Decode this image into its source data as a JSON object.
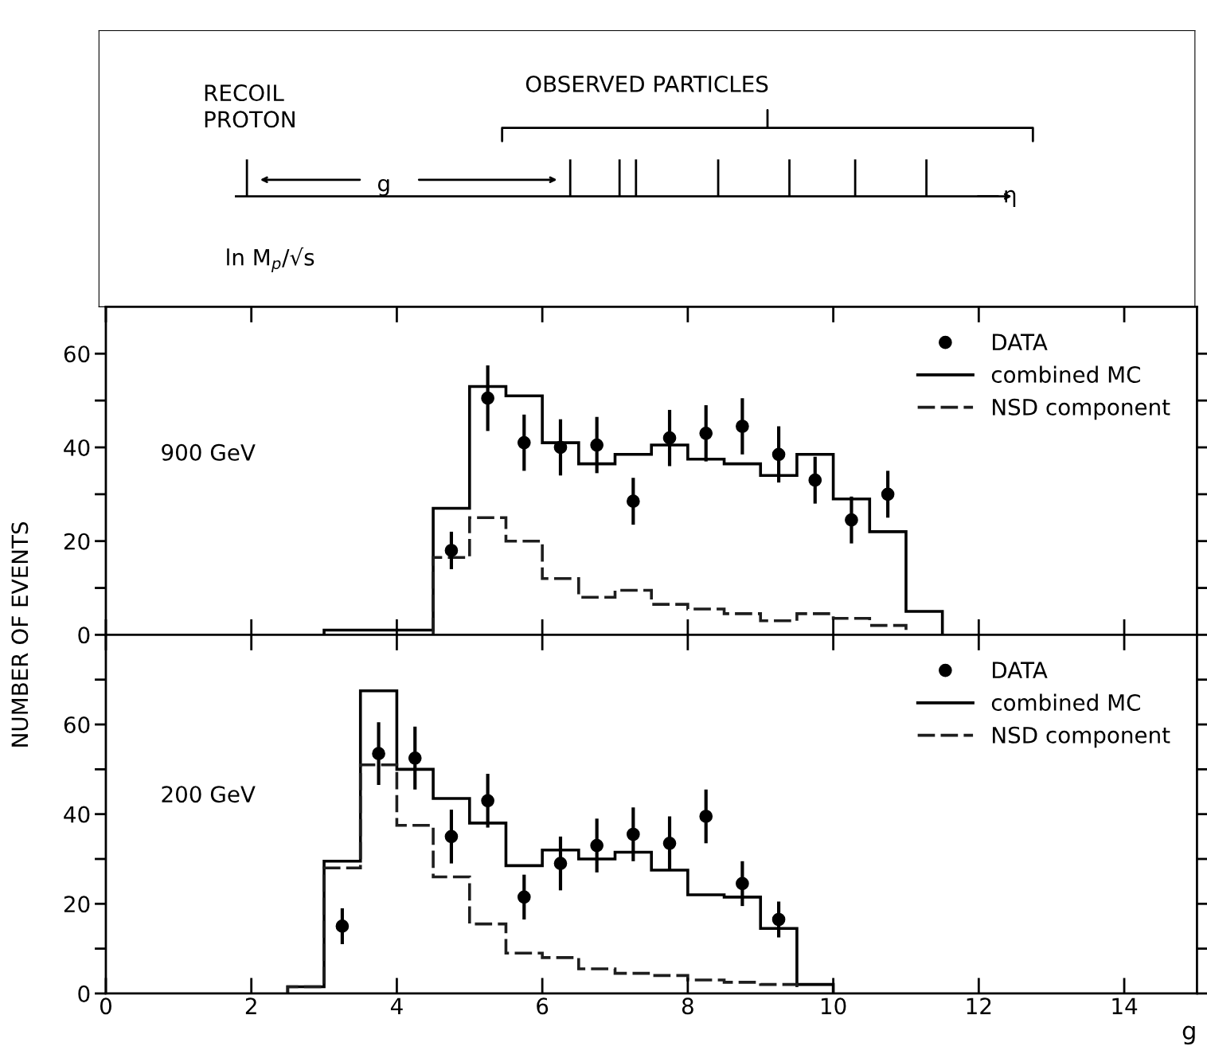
{
  "chart_data": [
    {
      "type": "other",
      "annotations": [
        "RECOIL\nPROTON",
        "OBSERVED PARTICLES",
        "g",
        "η",
        "ln M$_{p}$/√s"
      ]
    },
    {
      "type": "histogram",
      "xlim": [
        0,
        15
      ],
      "xticks": [
        0,
        2,
        4,
        6,
        8,
        10,
        12,
        14
      ],
      "ylim": [
        0,
        70
      ],
      "yticks": [
        0,
        {
          "value": 10,
          "label": null
        },
        20,
        {
          "value": 30,
          "label": null
        },
        40,
        {
          "value": 50,
          "label": null
        },
        60
      ],
      "tick_labels": "y",
      "legend": "top right",
      "grid": false,
      "annotations": [
        "900 GeV"
      ],
      "series": [
        {
          "name": "DATA",
          "type": "scatter",
          "marker": "circle",
          "color": "#000000",
          "x": [
            4.75,
            5.25,
            5.75,
            6.25,
            6.75,
            7.25,
            7.75,
            8.25,
            8.75,
            9.25,
            9.75,
            10.25,
            10.75
          ],
          "values": [
            18,
            50.5,
            41,
            40,
            40.5,
            28.5,
            42,
            43,
            44.5,
            38.5,
            33,
            24.5,
            30
          ],
          "errors": [
            4,
            7,
            6,
            6,
            6,
            5,
            6,
            6,
            6,
            6,
            5,
            5,
            5
          ]
        },
        {
          "name": "combined MC",
          "type": "histogram",
          "line_style": "solid",
          "color": "#000000",
          "bins": [
            3.0,
            3.5,
            4.0,
            4.5,
            5.0,
            5.5,
            6.0,
            6.5,
            7.0,
            7.5,
            8.0,
            8.5,
            9.0,
            9.5,
            10.0,
            10.5,
            11.0,
            11.5
          ],
          "values": [
            1,
            1,
            1,
            27,
            53,
            51,
            41,
            36.5,
            38.5,
            40.5,
            37.5,
            36.5,
            34,
            38.5,
            29,
            22,
            5
          ]
        },
        {
          "name": "NSD component",
          "type": "histogram",
          "line_style": "dashed",
          "color": "#1e1e1e",
          "bins": [
            4.5,
            5.0,
            5.5,
            6.0,
            6.5,
            7.0,
            7.5,
            8.0,
            8.5,
            9.0,
            9.5,
            10.0,
            10.5,
            11.0
          ],
          "values": [
            16.5,
            25,
            20,
            12,
            8,
            9.5,
            6.5,
            5.5,
            4.5,
            3,
            4.5,
            3.5,
            2
          ]
        }
      ]
    },
    {
      "type": "histogram",
      "xlim": [
        0,
        15
      ],
      "xticks": [
        0,
        2,
        4,
        6,
        8,
        10,
        12,
        14
      ],
      "ylim": [
        0,
        80
      ],
      "yticks": [
        0,
        {
          "value": 10,
          "label": null
        },
        20,
        {
          "value": 30,
          "label": null
        },
        40,
        {
          "value": 50,
          "label": null
        },
        60,
        {
          "value": 70,
          "label": null
        }
      ],
      "xlabel": "g",
      "ylabel": "NUMBER OF EVENTS",
      "legend": "top right",
      "grid": false,
      "annotations": [
        "200 GeV"
      ],
      "series": [
        {
          "name": "DATA",
          "type": "scatter",
          "marker": "circle",
          "color": "#000000",
          "x": [
            3.25,
            3.75,
            4.25,
            4.75,
            5.25,
            5.75,
            6.25,
            6.75,
            7.25,
            7.75,
            8.25,
            8.75,
            9.25
          ],
          "values": [
            15,
            53.5,
            52.5,
            35,
            43,
            21.5,
            29,
            33,
            35.5,
            33.5,
            39.5,
            24.5,
            16.5
          ],
          "errors": [
            4,
            7,
            7,
            6,
            6,
            5,
            6,
            6,
            6,
            6,
            6,
            5,
            4
          ]
        },
        {
          "name": "combined MC",
          "type": "histogram",
          "line_style": "solid",
          "color": "#000000",
          "bins": [
            2.5,
            3.0,
            3.5,
            4.0,
            4.5,
            5.0,
            5.5,
            6.0,
            6.5,
            7.0,
            7.5,
            8.0,
            8.5,
            9.0,
            9.5,
            10.0
          ],
          "values": [
            1.5,
            29.5,
            67.5,
            50,
            43.5,
            38,
            28.5,
            32,
            30,
            31.5,
            27.5,
            22,
            21.5,
            14.5,
            2
          ]
        },
        {
          "name": "NSD component",
          "type": "histogram",
          "line_style": "dashed",
          "color": "#1e1e1e",
          "bins": [
            2.5,
            3.0,
            3.5,
            4.0,
            4.5,
            5.0,
            5.5,
            6.0,
            6.5,
            7.0,
            7.5,
            8.0,
            8.5,
            9.0,
            9.5
          ],
          "values": [
            1.5,
            28,
            51,
            37.5,
            26,
            15.5,
            9,
            8,
            5.5,
            4.5,
            4,
            3,
            2.5,
            2
          ]
        }
      ]
    }
  ]
}
